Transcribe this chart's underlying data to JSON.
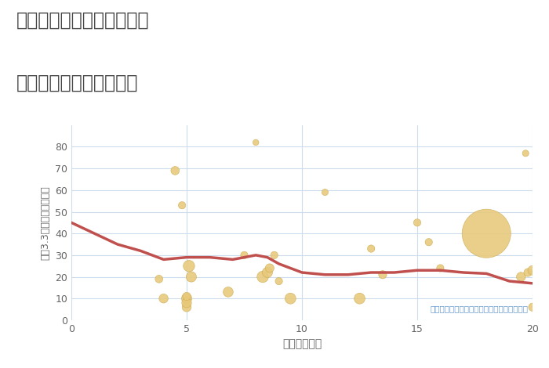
{
  "title_line1": "兵庫県豊岡市日高町石井の",
  "title_line2": "駅距離別中古戸建て価格",
  "xlabel": "駅距離（分）",
  "ylabel": "坪（3.3㎡）単価（万円）",
  "annotation": "円の大きさは、取引のあった物件面積を示す",
  "xlim": [
    0,
    20
  ],
  "ylim": [
    0,
    90
  ],
  "xticks": [
    0,
    5,
    10,
    15,
    20
  ],
  "yticks": [
    0,
    10,
    20,
    30,
    40,
    50,
    60,
    70,
    80
  ],
  "bubble_color": "#E8C97A",
  "bubble_edge_color": "#C9A84C",
  "line_color": "#C0504D",
  "bg_color": "#FFFFFF",
  "plot_bg_color": "#FFFFFF",
  "grid_color": "#CDDCEC",
  "tick_color": "#666666",
  "title_color": "#444444",
  "annotation_color": "#6699CC",
  "scatter_x": [
    3.8,
    4.0,
    4.5,
    4.8,
    5.0,
    5.0,
    5.0,
    5.0,
    5.1,
    5.2,
    6.8,
    7.5,
    8.0,
    8.3,
    8.5,
    8.6,
    8.8,
    9.0,
    9.5,
    11.0,
    12.5,
    13.0,
    13.5,
    15.0,
    15.5,
    16.0,
    18.0,
    19.5,
    19.7,
    19.8,
    20.0,
    20.0
  ],
  "scatter_y": [
    19,
    10,
    69,
    53,
    10,
    6,
    8,
    11,
    25,
    20,
    13,
    30,
    82,
    20,
    22,
    24,
    30,
    18,
    10,
    59,
    10,
    33,
    21,
    45,
    36,
    24,
    40,
    20,
    77,
    22,
    23,
    6
  ],
  "scatter_size": [
    50,
    70,
    60,
    45,
    90,
    70,
    80,
    55,
    110,
    90,
    85,
    45,
    30,
    110,
    90,
    65,
    45,
    45,
    100,
    35,
    100,
    45,
    55,
    45,
    45,
    45,
    2000,
    70,
    35,
    55,
    75,
    55
  ],
  "trend_x": [
    0,
    1,
    2,
    3,
    4,
    4.5,
    5,
    5.5,
    6,
    7,
    7.5,
    8,
    8.5,
    9,
    10,
    11,
    12,
    13,
    14,
    15,
    16,
    17,
    18,
    19,
    20
  ],
  "trend_y": [
    45,
    40,
    35,
    32,
    28,
    28.5,
    29,
    29,
    29,
    28,
    29,
    30,
    29,
    26,
    22,
    21,
    21,
    22,
    22,
    23,
    23,
    22,
    21.5,
    18,
    17
  ]
}
